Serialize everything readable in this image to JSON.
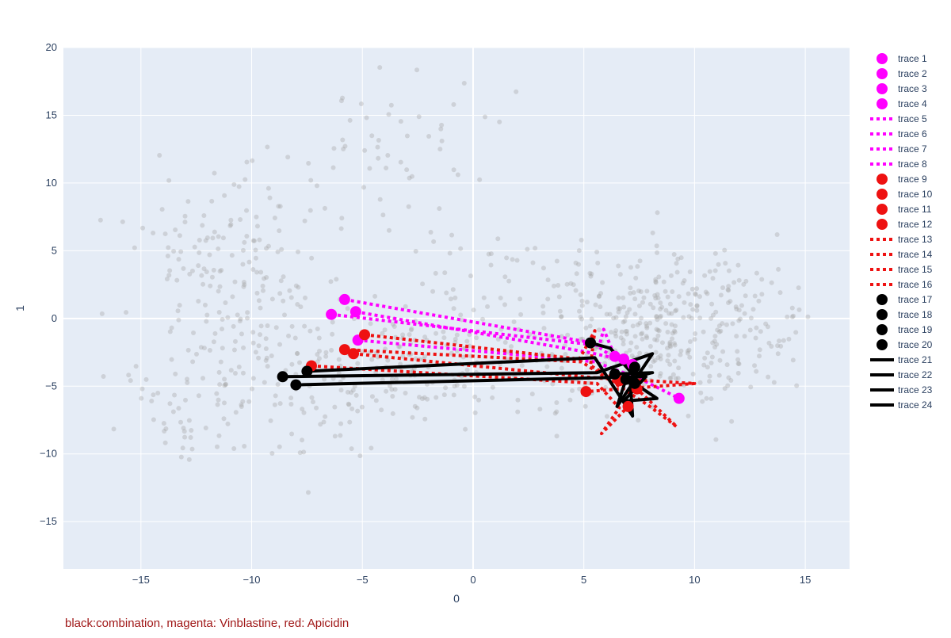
{
  "chart_data": {
    "type": "scatter",
    "xlabel": "0",
    "ylabel": "1",
    "xlim": [
      -18.5,
      17
    ],
    "ylim": [
      -18.5,
      20
    ],
    "x_ticks": [
      -15,
      -10,
      -5,
      0,
      5,
      10,
      15
    ],
    "y_ticks": [
      -15,
      -10,
      -5,
      0,
      5,
      10,
      15,
      20
    ],
    "grid": true,
    "legend_position": "right",
    "annotation": "black:combination, magenta: Vinblastine, red: Apicidin",
    "background_cloud": {
      "color": "#a0a0a0",
      "clusters": [
        {
          "cx": -11,
          "cy": 4,
          "sx": 2.2,
          "sy": 3.5,
          "n": 150
        },
        {
          "cx": -9,
          "cy": -5,
          "sx": 2.6,
          "sy": 3.2,
          "n": 110
        },
        {
          "cx": -4,
          "cy": 12,
          "sx": 2.4,
          "sy": 3.0,
          "n": 55
        },
        {
          "cx": -3,
          "cy": -4,
          "sx": 3.2,
          "sy": 2.0,
          "n": 150
        },
        {
          "cx": 2,
          "cy": 1,
          "sx": 3.2,
          "sy": 3.0,
          "n": 90
        },
        {
          "cx": 8,
          "cy": -1,
          "sx": 2.4,
          "sy": 3.0,
          "n": 290
        },
        {
          "cx": 12,
          "cy": 0,
          "sx": 1.8,
          "sy": 2.5,
          "n": 90
        },
        {
          "cx": -14,
          "cy": -7,
          "sx": 1.5,
          "sy": 2.0,
          "n": 30
        }
      ]
    },
    "series": [
      {
        "name": "trace 1",
        "color": "#ff00ff",
        "mode": "markers",
        "x": [
          -6.4,
          6.4
        ],
        "y": [
          0.3,
          -2.8
        ]
      },
      {
        "name": "trace 2",
        "color": "#ff00ff",
        "mode": "markers",
        "x": [
          -5.8,
          6.8
        ],
        "y": [
          1.4,
          -3.0
        ]
      },
      {
        "name": "trace 3",
        "color": "#ff00ff",
        "mode": "markers",
        "x": [
          -5.3,
          7.2
        ],
        "y": [
          0.5,
          -3.4
        ]
      },
      {
        "name": "trace 4",
        "color": "#ff00ff",
        "mode": "markers",
        "x": [
          -5.2,
          9.3
        ],
        "y": [
          -1.6,
          -5.9
        ]
      },
      {
        "name": "trace 5",
        "color": "#ff00ff",
        "mode": "dotted",
        "x": [
          -6.4,
          5.7,
          5.9,
          6.4
        ],
        "y": [
          0.3,
          -2.0,
          -0.8,
          -2.8
        ]
      },
      {
        "name": "trace 6",
        "color": "#ff00ff",
        "mode": "dotted",
        "x": [
          -5.8,
          5.4,
          6.1,
          6.8
        ],
        "y": [
          1.4,
          -1.8,
          -2.6,
          -3.0
        ]
      },
      {
        "name": "trace 7",
        "color": "#ff00ff",
        "mode": "dotted",
        "x": [
          -5.3,
          5.2,
          6.6,
          7.2
        ],
        "y": [
          0.5,
          -2.5,
          -3.0,
          -3.4
        ]
      },
      {
        "name": "trace 8",
        "color": "#ff00ff",
        "mode": "dotted",
        "x": [
          -5.2,
          5.5,
          7.6,
          9.3
        ],
        "y": [
          -1.6,
          -3.2,
          -4.5,
          -5.9
        ]
      },
      {
        "name": "trace 9",
        "color": "#ee1111",
        "mode": "markers",
        "x": [
          -7.3,
          7.0
        ],
        "y": [
          -3.5,
          -6.5
        ]
      },
      {
        "name": "trace 10",
        "color": "#ee1111",
        "mode": "markers",
        "x": [
          -5.8,
          7.4
        ],
        "y": [
          -2.3,
          -5.2
        ]
      },
      {
        "name": "trace 11",
        "color": "#ee1111",
        "mode": "markers",
        "x": [
          -5.4,
          5.1
        ],
        "y": [
          -2.6,
          -5.4
        ]
      },
      {
        "name": "trace 12",
        "color": "#ee1111",
        "mode": "markers",
        "x": [
          -4.9,
          6.6
        ],
        "y": [
          -1.2,
          -4.6
        ]
      },
      {
        "name": "trace 13",
        "color": "#ee1111",
        "mode": "dotted",
        "x": [
          -7.3,
          5.6,
          6.6,
          5.8,
          7.0
        ],
        "y": [
          -3.5,
          -4.8,
          -6.6,
          -8.5,
          -6.5
        ]
      },
      {
        "name": "trace 14",
        "color": "#ee1111",
        "mode": "dotted",
        "x": [
          -5.8,
          4.9,
          7.9,
          9.2,
          7.4
        ],
        "y": [
          -2.3,
          -3.2,
          -6.4,
          -8.0,
          -5.2
        ]
      },
      {
        "name": "trace 15",
        "color": "#ee1111",
        "mode": "dotted",
        "x": [
          -5.4,
          5.6,
          6.9,
          10.0,
          5.1
        ],
        "y": [
          -2.6,
          -4.4,
          -4.5,
          -4.8,
          -5.4
        ]
      },
      {
        "name": "trace 16",
        "color": "#ee1111",
        "mode": "dotted",
        "x": [
          -4.9,
          4.8,
          5.5,
          5.3,
          6.6
        ],
        "y": [
          -1.2,
          -3.0,
          -0.9,
          -3.5,
          -4.6
        ]
      },
      {
        "name": "trace 17",
        "color": "#000000",
        "mode": "markers",
        "x": [
          -8.6,
          6.9
        ],
        "y": [
          -4.3,
          -4.5
        ]
      },
      {
        "name": "trace 18",
        "color": "#000000",
        "mode": "markers",
        "x": [
          -8.0,
          7.3
        ],
        "y": [
          -4.9,
          -4.8
        ]
      },
      {
        "name": "trace 19",
        "color": "#000000",
        "mode": "markers",
        "x": [
          -7.5,
          7.3
        ],
        "y": [
          -3.9,
          -3.6
        ]
      },
      {
        "name": "trace 20",
        "color": "#000000",
        "mode": "markers",
        "x": [
          5.3,
          6.4
        ],
        "y": [
          -1.8,
          -4.1
        ]
      },
      {
        "name": "trace 21",
        "color": "#000000",
        "mode": "solid",
        "x": [
          -8.6,
          5.6,
          8.1,
          6.5,
          6.9
        ],
        "y": [
          -4.3,
          -4.0,
          -2.6,
          -6.5,
          -4.5
        ]
      },
      {
        "name": "trace 22",
        "color": "#000000",
        "mode": "solid",
        "x": [
          -8.0,
          7.8,
          6.8,
          8.3,
          7.3
        ],
        "y": [
          -4.9,
          -4.3,
          -6.1,
          -5.9,
          -4.8
        ]
      },
      {
        "name": "trace 23",
        "color": "#000000",
        "mode": "solid",
        "x": [
          -7.5,
          5.5,
          7.2,
          7.1,
          7.3
        ],
        "y": [
          -3.9,
          -2.9,
          -7.2,
          -4.8,
          -3.6
        ]
      },
      {
        "name": "trace 24",
        "color": "#000000",
        "mode": "solid",
        "x": [
          5.3,
          6.2,
          7.3,
          8.1,
          6.4
        ],
        "y": [
          -1.8,
          -2.2,
          -4.3,
          -4.0,
          -4.1
        ]
      }
    ]
  }
}
